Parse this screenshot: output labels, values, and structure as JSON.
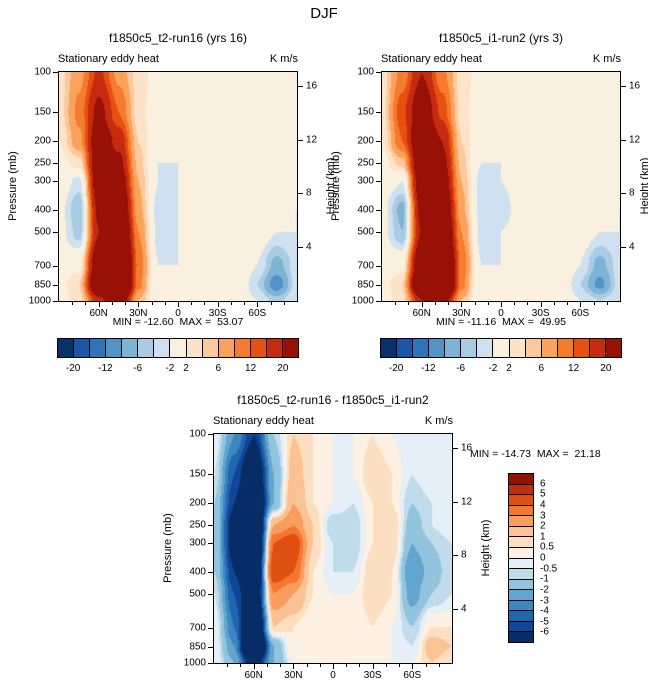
{
  "figure": {
    "title": "DJF"
  },
  "chart_data": [
    {
      "type": "heatmap",
      "title": "f1850c5_t2-run16 (yrs 16)",
      "subtitle": "Stationary eddy heat",
      "units": "K m/s",
      "ylabel": "Pressure (mb)",
      "y2label": "Height (km)",
      "x_tick_labels": [
        "60N",
        "30N",
        "0",
        "30S",
        "60S"
      ],
      "pressure_tick_labels": [
        "100",
        "150",
        "200",
        "250",
        "300",
        "400",
        "500",
        "700",
        "850",
        "1000"
      ],
      "height_tick_labels": [
        "16",
        "12",
        "8",
        "4"
      ],
      "min": -12.6,
      "max": 53.07,
      "minmax_label": "MIN = -12.60  MAX =  53.07",
      "contour_levels": [
        -20,
        -15,
        -12,
        -9,
        -6,
        -4,
        -2,
        2,
        4,
        6,
        9,
        12,
        15,
        20
      ],
      "colorbar_tick_labels": [
        "-20",
        "-12",
        "-6",
        "-2",
        "2",
        "6",
        "12",
        "20"
      ],
      "palette": [
        "#08316c",
        "#1a55a7",
        "#2f74b8",
        "#5193c7",
        "#7eb3d5",
        "#a9cbe3",
        "#cfe1f0",
        "#f9f0df",
        "#fde3c8",
        "#fcc99e",
        "#fba35c",
        "#f57b2e",
        "#e65012",
        "#c62b10",
        "#991006"
      ],
      "lat_grid_deg": [
        90,
        75,
        60,
        45,
        30,
        15,
        0,
        -15,
        -30,
        -45,
        -60,
        -75,
        -90
      ],
      "pressure_levels_mb": [
        100,
        150,
        200,
        250,
        300,
        400,
        500,
        700,
        850,
        1000
      ],
      "values_K_m_s": [
        [
          3,
          8,
          16,
          8,
          3,
          1,
          0,
          0,
          1,
          1,
          -1,
          -2,
          -1
        ],
        [
          3,
          10,
          22,
          12,
          3,
          0,
          -1,
          0,
          1,
          1,
          -1,
          -2,
          -1
        ],
        [
          2,
          8,
          26,
          18,
          4,
          -1,
          -1,
          -1,
          0,
          1,
          0,
          -1,
          -1
        ],
        [
          1,
          3,
          27,
          22,
          5,
          -2,
          -2,
          -1,
          0,
          1,
          1,
          -1,
          -1
        ],
        [
          0,
          -3,
          26,
          26,
          6,
          -2,
          -2,
          -1,
          0,
          1,
          1,
          -1,
          -1
        ],
        [
          -1,
          -6,
          22,
          32,
          7,
          -3,
          -2,
          -1,
          0,
          1,
          1,
          -1,
          -2
        ],
        [
          -1,
          -5,
          20,
          37,
          9,
          -3,
          -2,
          -1,
          1,
          1,
          0,
          -2,
          -2
        ],
        [
          0,
          1,
          28,
          46,
          11,
          -2,
          -2,
          -1,
          1,
          1,
          -2,
          -7,
          -3
        ],
        [
          1,
          4,
          33,
          53,
          10,
          -2,
          -1,
          -1,
          0,
          1,
          -4,
          -11,
          -3
        ],
        [
          1,
          3,
          18,
          28,
          6,
          -1,
          -1,
          0,
          0,
          0,
          -2,
          -5,
          -2
        ]
      ]
    },
    {
      "type": "heatmap",
      "title": "f1850c5_i1-run2 (yrs 3)",
      "subtitle": "Stationary eddy heat",
      "units": "K m/s",
      "ylabel": "Pressure (mb)",
      "y2label": "Height (km)",
      "x_tick_labels": [
        "60N",
        "30N",
        "0",
        "30S",
        "60S"
      ],
      "pressure_tick_labels": [
        "100",
        "150",
        "200",
        "250",
        "300",
        "400",
        "500",
        "700",
        "850",
        "1000"
      ],
      "height_tick_labels": [
        "16",
        "12",
        "8",
        "4"
      ],
      "min": -11.16,
      "max": 49.95,
      "minmax_label": "MIN = -11.16  MAX =  49.95",
      "contour_levels": [
        -20,
        -15,
        -12,
        -9,
        -6,
        -4,
        -2,
        2,
        4,
        6,
        9,
        12,
        15,
        20
      ],
      "colorbar_tick_labels": [
        "-20",
        "-12",
        "-6",
        "-2",
        "2",
        "6",
        "12",
        "20"
      ],
      "palette": [
        "#08316c",
        "#1a55a7",
        "#2f74b8",
        "#5193c7",
        "#7eb3d5",
        "#a9cbe3",
        "#cfe1f0",
        "#f9f0df",
        "#fde3c8",
        "#fcc99e",
        "#fba35c",
        "#f57b2e",
        "#e65012",
        "#c62b10",
        "#991006"
      ],
      "lat_grid_deg": [
        90,
        75,
        60,
        45,
        30,
        15,
        0,
        -15,
        -30,
        -45,
        -60,
        -75,
        -90
      ],
      "pressure_levels_mb": [
        100,
        150,
        200,
        250,
        300,
        400,
        500,
        700,
        850,
        1000
      ],
      "values_K_m_s": [
        [
          3,
          10,
          20,
          10,
          3,
          1,
          0,
          0,
          1,
          1,
          0,
          -1,
          -1
        ],
        [
          3,
          14,
          27,
          14,
          3,
          0,
          -1,
          0,
          1,
          2,
          1,
          -1,
          -1
        ],
        [
          2,
          12,
          30,
          20,
          4,
          -1,
          -1,
          -1,
          0,
          2,
          1,
          -1,
          -1
        ],
        [
          1,
          5,
          29,
          23,
          5,
          -2,
          -2,
          -1,
          0,
          2,
          1,
          -1,
          -1
        ],
        [
          0,
          -2,
          27,
          26,
          6,
          -3,
          -2,
          -1,
          0,
          1,
          1,
          -1,
          -1
        ],
        [
          -1,
          -7,
          23,
          31,
          7,
          -3,
          -3,
          -1,
          0,
          1,
          1,
          -1,
          -2
        ],
        [
          -1,
          -6,
          21,
          35,
          9,
          -3,
          -2,
          -1,
          1,
          1,
          0,
          -2,
          -2
        ],
        [
          0,
          1,
          30,
          44,
          11,
          -2,
          -2,
          -1,
          1,
          1,
          -2,
          -7,
          -3
        ],
        [
          1,
          4,
          36,
          50,
          10,
          -2,
          -1,
          -1,
          0,
          1,
          -4,
          -10,
          -3
        ],
        [
          1,
          3,
          20,
          26,
          6,
          -1,
          -1,
          0,
          0,
          0,
          -2,
          -4,
          -2
        ]
      ]
    },
    {
      "type": "heatmap",
      "title": "f1850c5_t2-run16 - f1850c5_i1-run2",
      "subtitle": "Stationary eddy heat",
      "units": "K m/s",
      "ylabel": "Pressure (mb)",
      "y2label": "Height (km)",
      "x_tick_labels": [
        "60N",
        "30N",
        "0",
        "30S",
        "60S"
      ],
      "pressure_tick_labels": [
        "100",
        "150",
        "200",
        "250",
        "300",
        "400",
        "500",
        "700",
        "850",
        "1000"
      ],
      "height_tick_labels": [
        "16",
        "12",
        "8",
        "4"
      ],
      "min": -14.73,
      "max": 21.18,
      "minmax_label": "MIN = -14.73  MAX =  21.18",
      "contour_levels": [
        -6,
        -5,
        -4,
        -3,
        -2,
        -1,
        -0.5,
        0,
        0.5,
        1,
        2,
        3,
        4,
        5,
        6
      ],
      "colorbar_tick_labels": [
        "6",
        "5",
        "4",
        "3",
        "2",
        "1",
        "0.5",
        "0",
        "-0.5",
        "-1",
        "-2",
        "-3",
        "-4",
        "-5",
        "-6"
      ],
      "palette": [
        "#082c66",
        "#0f459c",
        "#2166ac",
        "#3b87bf",
        "#62a5cf",
        "#93c4de",
        "#c0dceb",
        "#e4eff7",
        "#fcf1e2",
        "#fcdfc0",
        "#fbc294",
        "#f99d5e",
        "#f4762f",
        "#e04f12",
        "#bd2f0d",
        "#8f1205"
      ],
      "lat_grid_deg": [
        90,
        75,
        60,
        45,
        30,
        15,
        0,
        -15,
        -30,
        -45,
        -60,
        -75,
        -90
      ],
      "pressure_levels_mb": [
        100,
        150,
        200,
        250,
        300,
        400,
        500,
        700,
        850,
        1000
      ],
      "values_K_m_s": [
        [
          0,
          -3,
          -6,
          -1,
          1,
          0.5,
          0,
          0,
          0.5,
          0,
          -0.5,
          0,
          0
        ],
        [
          -0.5,
          -5,
          -9,
          -2,
          1.5,
          0.5,
          0,
          0,
          1,
          0.5,
          -0.5,
          0,
          0
        ],
        [
          -1,
          -6,
          -11,
          -2,
          2,
          0.5,
          0,
          -0.5,
          0.5,
          0.5,
          -1,
          -0.5,
          0
        ],
        [
          -1,
          -7,
          -12,
          2,
          3,
          1,
          -1,
          -1,
          0.5,
          1,
          -1.5,
          -0.5,
          0
        ],
        [
          -1,
          -7,
          -12,
          4,
          5,
          1,
          -0.5,
          -1,
          0.5,
          1,
          -2,
          -1,
          -0.5
        ],
        [
          -1,
          -6,
          -10,
          5,
          4,
          0.5,
          -0.5,
          -0.5,
          1,
          0.5,
          -3,
          -1.5,
          -0.5
        ],
        [
          -0.5,
          -5,
          -9,
          3,
          2,
          0.5,
          0,
          0,
          1,
          0.5,
          -2.5,
          -1,
          -0.5
        ],
        [
          0,
          -4,
          -11,
          1,
          0.5,
          0,
          0.5,
          0,
          0.5,
          0,
          -1,
          0.5,
          0.5
        ],
        [
          0,
          -3,
          -14,
          -2,
          0.5,
          0.5,
          0.5,
          0,
          0.5,
          0,
          -0.5,
          1.5,
          1
        ],
        [
          0,
          -2,
          -8,
          -2,
          0,
          0,
          0.5,
          0,
          0,
          0,
          0,
          1,
          0.5
        ]
      ]
    }
  ]
}
